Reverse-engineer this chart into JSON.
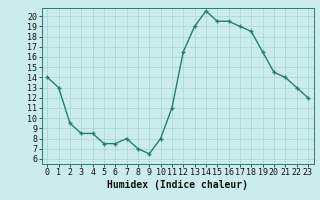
{
  "x": [
    0,
    1,
    2,
    3,
    4,
    5,
    6,
    7,
    8,
    9,
    10,
    11,
    12,
    13,
    14,
    15,
    16,
    17,
    18,
    19,
    20,
    21,
    22,
    23
  ],
  "y": [
    14,
    13,
    9.5,
    8.5,
    8.5,
    7.5,
    7.5,
    8.0,
    7.0,
    6.5,
    8.0,
    11.0,
    16.5,
    19.0,
    20.5,
    19.5,
    19.5,
    19.0,
    18.5,
    16.5,
    14.5,
    14.0,
    13.0,
    12.0
  ],
  "line_color": "#2a7d6e",
  "marker_color": "#2a7d6e",
  "bg_color": "#cbecec",
  "grid_color": "#a8d4d4",
  "xlabel": "Humidex (Indice chaleur)",
  "xlim": [
    -0.5,
    23.5
  ],
  "ylim": [
    5.5,
    20.8
  ],
  "yticks": [
    6,
    7,
    8,
    9,
    10,
    11,
    12,
    13,
    14,
    15,
    16,
    17,
    18,
    19,
    20
  ],
  "xticks": [
    0,
    1,
    2,
    3,
    4,
    5,
    6,
    7,
    8,
    9,
    10,
    11,
    12,
    13,
    14,
    15,
    16,
    17,
    18,
    19,
    20,
    21,
    22,
    23
  ],
  "xlabel_fontsize": 7,
  "tick_fontsize": 6,
  "axis_text_color": "#111111"
}
